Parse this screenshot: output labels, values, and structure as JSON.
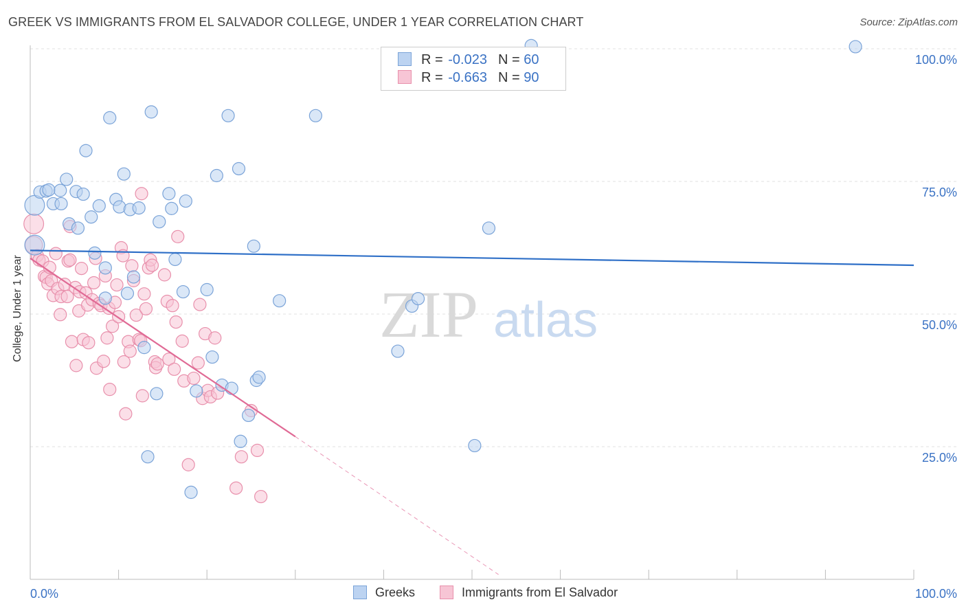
{
  "title": "GREEK VS IMMIGRANTS FROM EL SALVADOR COLLEGE, UNDER 1 YEAR CORRELATION CHART",
  "source": "Source: ZipAtlas.com",
  "watermark": {
    "zip": "ZIP",
    "atlas": "atlas"
  },
  "legend": {
    "series": [
      {
        "r_label": "R = ",
        "r_value": "-0.023",
        "n_label": "N = ",
        "n_value": "60",
        "fill": "#bcd3f1",
        "stroke": "#7aa3d8"
      },
      {
        "r_label": "R = ",
        "r_value": "-0.663",
        "n_label": "N = ",
        "n_value": "90",
        "fill": "#f7c5d5",
        "stroke": "#e88fab"
      }
    ]
  },
  "bottom_legend": {
    "greeks": "Greeks",
    "salvador": "Immigrants from El Salvador"
  },
  "colors": {
    "blue_fill": "#bcd3f1",
    "blue_stroke": "#7aa3d8",
    "blue_line": "#2e6fc7",
    "pink_fill": "#f7c5d5",
    "pink_stroke": "#e88fab",
    "pink_line": "#e06a95",
    "tick": "#3a72c4",
    "grid": "#e0e0e0"
  },
  "chart_data": {
    "type": "scatter",
    "title": "GREEK VS IMMIGRANTS FROM EL SALVADOR COLLEGE, UNDER 1 YEAR CORRELATION CHART",
    "xlabel": "",
    "ylabel": "College, Under 1 year",
    "xlim": [
      0,
      100
    ],
    "ylim": [
      0,
      103.5
    ],
    "y_ticks": [
      {
        "value": 100,
        "label": "100.0%"
      },
      {
        "value": 75,
        "label": "75.0%"
      },
      {
        "value": 50,
        "label": "50.0%"
      },
      {
        "value": 25,
        "label": "25.0%"
      }
    ],
    "x_tick_labels": [
      {
        "value": 0,
        "label": "0.0%"
      },
      {
        "value": 100,
        "label": "100.0%"
      }
    ],
    "x_minor_ticks": [
      0,
      10,
      20,
      30,
      40,
      50,
      60,
      70,
      80,
      90,
      100
    ],
    "series": [
      {
        "name": "Greeks",
        "r": -0.023,
        "n": 60,
        "trend": {
          "x": [
            0,
            100
          ],
          "y": [
            62.0,
            59.2
          ],
          "dashed_after": null
        },
        "points": [
          [
            0.5,
            70.5,
            1.6
          ],
          [
            0.5,
            63.0,
            1.6
          ],
          [
            1.1,
            73.0,
            1
          ],
          [
            1.8,
            73.2,
            1
          ],
          [
            2.1,
            73.4,
            1
          ],
          [
            2.6,
            70.8,
            1
          ],
          [
            3.4,
            73.3,
            1
          ],
          [
            3.5,
            70.8,
            1
          ],
          [
            4.1,
            75.4,
            1
          ],
          [
            4.4,
            67.0,
            1
          ],
          [
            5.2,
            73.1,
            1
          ],
          [
            5.4,
            66.2,
            1
          ],
          [
            6.0,
            72.6,
            1
          ],
          [
            6.3,
            80.8,
            1
          ],
          [
            6.9,
            68.3,
            1
          ],
          [
            7.3,
            61.5,
            1
          ],
          [
            7.8,
            70.4,
            1
          ],
          [
            8.5,
            53.0,
            1
          ],
          [
            8.5,
            58.7,
            1
          ],
          [
            9.0,
            87.0,
            1
          ],
          [
            9.7,
            71.6,
            1
          ],
          [
            10.1,
            70.2,
            1
          ],
          [
            10.6,
            76.4,
            1
          ],
          [
            11.0,
            53.9,
            1
          ],
          [
            11.3,
            69.7,
            1
          ],
          [
            11.7,
            57.0,
            1
          ],
          [
            12.3,
            70.0,
            1
          ],
          [
            12.9,
            43.7,
            1
          ],
          [
            13.7,
            88.1,
            1
          ],
          [
            14.3,
            35.0,
            1
          ],
          [
            14.6,
            67.4,
            1
          ],
          [
            13.3,
            23.1,
            1
          ],
          [
            15.7,
            72.7,
            1
          ],
          [
            16.0,
            69.9,
            1
          ],
          [
            16.4,
            60.3,
            1
          ],
          [
            17.3,
            54.2,
            1
          ],
          [
            17.6,
            71.3,
            1
          ],
          [
            18.2,
            16.4,
            1
          ],
          [
            18.8,
            35.5,
            1
          ],
          [
            20.0,
            54.6,
            1
          ],
          [
            20.6,
            41.9,
            1
          ],
          [
            21.1,
            76.1,
            1
          ],
          [
            21.7,
            36.6,
            1
          ],
          [
            22.4,
            87.4,
            1
          ],
          [
            22.8,
            36.0,
            1
          ],
          [
            23.6,
            77.4,
            1
          ],
          [
            23.8,
            26.0,
            1
          ],
          [
            24.7,
            30.9,
            1
          ],
          [
            25.3,
            62.8,
            1
          ],
          [
            25.6,
            37.5,
            1
          ],
          [
            25.9,
            38.1,
            1
          ],
          [
            28.2,
            52.5,
            1
          ],
          [
            32.3,
            87.4,
            1
          ],
          [
            41.6,
            43.0,
            1
          ],
          [
            43.2,
            51.5,
            1
          ],
          [
            43.9,
            52.9,
            1
          ],
          [
            50.3,
            25.2,
            1
          ],
          [
            51.9,
            66.2,
            1
          ],
          [
            56.7,
            100.6,
            1
          ],
          [
            93.4,
            100.4,
            1
          ]
        ]
      },
      {
        "name": "Immigrants from El Salvador",
        "r": -0.663,
        "n": 90,
        "trend": {
          "x": [
            0,
            30
          ],
          "y": [
            60.5,
            26.9
          ],
          "dashed_to": [
            53.0,
            0.9
          ]
        },
        "points": [
          [
            0.4,
            67.0,
            1.6
          ],
          [
            0.4,
            63.0,
            1.4
          ],
          [
            0.8,
            61.0,
            1
          ],
          [
            1.0,
            60.2,
            1
          ],
          [
            1.4,
            60.0,
            1
          ],
          [
            1.6,
            57.1,
            1
          ],
          [
            1.8,
            56.9,
            1
          ],
          [
            2.0,
            55.7,
            1
          ],
          [
            2.2,
            58.8,
            1
          ],
          [
            2.4,
            56.3,
            1
          ],
          [
            2.6,
            53.5,
            1
          ],
          [
            2.9,
            61.4,
            1
          ],
          [
            3.1,
            54.8,
            1
          ],
          [
            3.4,
            49.9,
            1
          ],
          [
            3.5,
            53.3,
            1
          ],
          [
            3.9,
            55.6,
            1
          ],
          [
            4.2,
            53.3,
            1
          ],
          [
            4.3,
            60.0,
            1
          ],
          [
            4.5,
            60.2,
            1
          ],
          [
            4.5,
            66.5,
            1
          ],
          [
            4.7,
            44.8,
            1
          ],
          [
            5.1,
            55.0,
            1
          ],
          [
            5.2,
            40.3,
            1
          ],
          [
            5.5,
            50.6,
            1
          ],
          [
            5.6,
            54.2,
            1
          ],
          [
            5.8,
            58.6,
            1
          ],
          [
            6.0,
            45.2,
            1
          ],
          [
            6.3,
            54.0,
            1
          ],
          [
            6.5,
            51.7,
            1
          ],
          [
            6.6,
            44.6,
            1
          ],
          [
            7.0,
            52.7,
            1
          ],
          [
            7.2,
            55.9,
            1
          ],
          [
            7.4,
            60.5,
            1
          ],
          [
            7.5,
            39.8,
            1
          ],
          [
            7.8,
            52.0,
            1
          ],
          [
            8.0,
            51.6,
            1
          ],
          [
            8.3,
            41.1,
            1
          ],
          [
            8.5,
            57.2,
            1
          ],
          [
            8.7,
            45.5,
            1
          ],
          [
            8.9,
            51.1,
            1
          ],
          [
            9.0,
            35.8,
            1
          ],
          [
            9.3,
            47.7,
            1
          ],
          [
            9.6,
            52.2,
            1
          ],
          [
            9.8,
            55.5,
            1
          ],
          [
            10.0,
            49.5,
            1
          ],
          [
            10.3,
            62.5,
            1
          ],
          [
            10.5,
            61.0,
            1
          ],
          [
            10.6,
            41.0,
            1
          ],
          [
            10.8,
            31.2,
            1
          ],
          [
            11.1,
            44.8,
            1
          ],
          [
            11.3,
            43.0,
            1
          ],
          [
            11.5,
            59.1,
            1
          ],
          [
            11.7,
            56.3,
            1
          ],
          [
            12.0,
            49.8,
            1
          ],
          [
            12.3,
            45.2,
            1
          ],
          [
            12.5,
            45.0,
            1
          ],
          [
            12.7,
            34.6,
            1
          ],
          [
            12.9,
            53.8,
            1
          ],
          [
            13.1,
            51.0,
            1
          ],
          [
            13.4,
            58.7,
            1
          ],
          [
            13.6,
            60.2,
            1
          ],
          [
            13.8,
            59.2,
            1
          ],
          [
            14.1,
            41.0,
            1
          ],
          [
            14.2,
            39.9,
            1
          ],
          [
            14.4,
            40.6,
            1
          ],
          [
            12.6,
            72.7,
            1
          ],
          [
            15.2,
            57.4,
            1
          ],
          [
            15.5,
            52.4,
            1
          ],
          [
            15.7,
            41.5,
            1
          ],
          [
            16.1,
            51.6,
            1
          ],
          [
            16.3,
            39.6,
            1
          ],
          [
            16.5,
            48.5,
            1
          ],
          [
            16.7,
            64.6,
            1
          ],
          [
            17.2,
            44.9,
            1
          ],
          [
            17.4,
            37.4,
            1
          ],
          [
            17.9,
            21.6,
            1
          ],
          [
            18.5,
            37.9,
            1
          ],
          [
            19.0,
            40.8,
            1
          ],
          [
            19.2,
            51.8,
            1
          ],
          [
            19.5,
            34.1,
            1
          ],
          [
            19.8,
            46.3,
            1
          ],
          [
            20.1,
            35.6,
            1
          ],
          [
            20.4,
            34.4,
            1
          ],
          [
            20.9,
            45.5,
            1
          ],
          [
            21.2,
            35.1,
            1
          ],
          [
            23.3,
            17.2,
            1
          ],
          [
            23.9,
            23.1,
            1
          ],
          [
            25.0,
            31.8,
            1
          ],
          [
            25.7,
            24.3,
            1
          ],
          [
            26.1,
            15.6,
            1
          ]
        ]
      }
    ]
  }
}
